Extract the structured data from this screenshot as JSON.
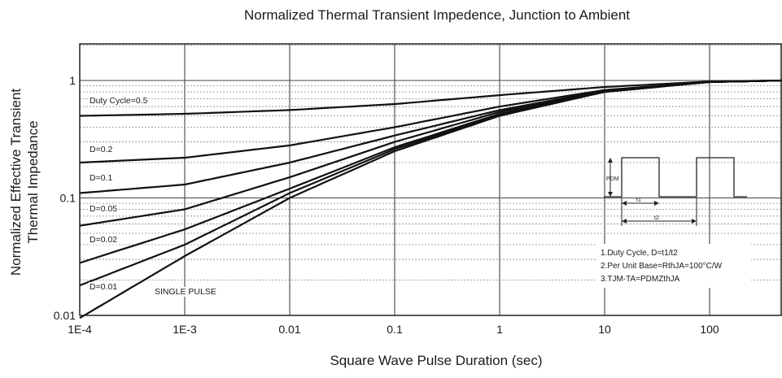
{
  "chart_data": {
    "type": "line",
    "title": "Normalized Thermal Transient Impedence, Junction to Ambient",
    "xlabel": "Square Wave Pulse Duration (sec)",
    "ylabel_line1": "Normalized Effective Transient",
    "ylabel_line2": "Thermal Impedance",
    "x_scale": "log",
    "y_scale": "log",
    "xlim": [
      0.0001,
      500
    ],
    "ylim": [
      0.01,
      1.2
    ],
    "x_tick_values": [
      0.0001,
      0.001,
      0.01,
      0.1,
      1,
      10,
      100
    ],
    "x_tick_labels": [
      "1E-4",
      "1E-3",
      "0.01",
      "0.1",
      "1",
      "10",
      "100"
    ],
    "y_tick_values": [
      0.01,
      0.1,
      1
    ],
    "y_tick_labels": [
      "0.01",
      "0.1",
      "1"
    ],
    "grid": "major solid vertical and horizontal, minor dashed horizontal",
    "series": [
      {
        "name": "Duty Cycle=0.5",
        "x": [
          0.0001,
          0.001,
          0.01,
          0.1,
          1,
          10,
          100,
          500
        ],
        "y": [
          0.5,
          0.52,
          0.56,
          0.63,
          0.75,
          0.88,
          0.98,
          1.0
        ]
      },
      {
        "name": "D=0.2",
        "x": [
          0.0001,
          0.001,
          0.01,
          0.1,
          1,
          10,
          100,
          500
        ],
        "y": [
          0.2,
          0.22,
          0.28,
          0.4,
          0.6,
          0.83,
          0.97,
          1.0
        ]
      },
      {
        "name": "D=0.1",
        "x": [
          0.0001,
          0.001,
          0.01,
          0.1,
          1,
          10,
          100,
          500
        ],
        "y": [
          0.11,
          0.13,
          0.2,
          0.34,
          0.56,
          0.82,
          0.97,
          1.0
        ]
      },
      {
        "name": "D=0.05",
        "x": [
          0.0001,
          0.001,
          0.01,
          0.1,
          1,
          10,
          100,
          500
        ],
        "y": [
          0.058,
          0.08,
          0.15,
          0.3,
          0.54,
          0.81,
          0.97,
          1.0
        ]
      },
      {
        "name": "D=0.02",
        "x": [
          0.0001,
          0.001,
          0.01,
          0.1,
          1,
          10,
          100,
          500
        ],
        "y": [
          0.028,
          0.054,
          0.12,
          0.27,
          0.52,
          0.8,
          0.97,
          1.0
        ]
      },
      {
        "name": "D=0.01",
        "x": [
          0.0001,
          0.001,
          0.01,
          0.1,
          1,
          10,
          100,
          500
        ],
        "y": [
          0.018,
          0.04,
          0.11,
          0.26,
          0.51,
          0.8,
          0.97,
          1.0
        ]
      },
      {
        "name": "SINGLE PULSE",
        "x": [
          0.0001,
          0.001,
          0.01,
          0.1,
          1,
          10,
          100,
          500
        ],
        "y": [
          0.0095,
          0.032,
          0.1,
          0.25,
          0.5,
          0.8,
          0.97,
          1.0
        ]
      }
    ],
    "waveform_labels": {
      "amplitude": "PDM",
      "t1": "t1",
      "t2": "t2"
    },
    "notes": [
      "1.Duty Cycle, D=t1/t2",
      "2.Per Unit Base=RthJA=100°C/W",
      "3.TJM-TA=PDMZthJA"
    ]
  }
}
